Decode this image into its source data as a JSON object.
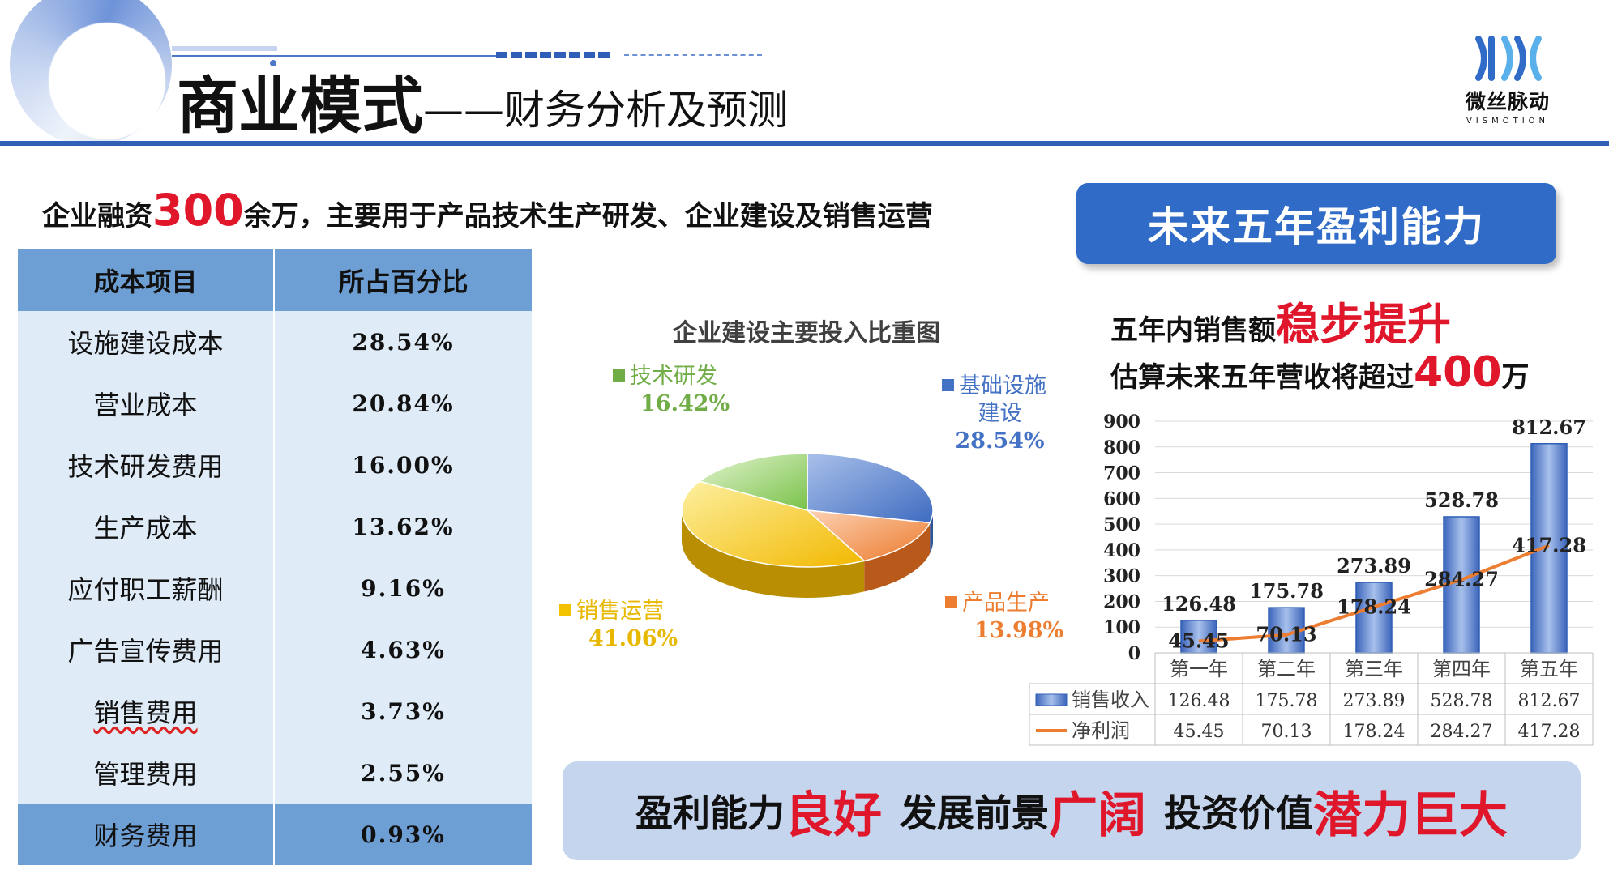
{
  "header": {
    "title_main": "商业模式",
    "title_sub": "——财务分析及预测"
  },
  "logo": {
    "name_cn": "微丝脉动",
    "name_en": "VISMOTION"
  },
  "funding": {
    "prefix": "企业融资",
    "amount": "300",
    "suffix": "余万，主要用于产品技术生产研发、企业建设及销售运营"
  },
  "cost_table": {
    "headers": [
      "成本项目",
      "所占百分比"
    ],
    "rows": [
      {
        "item": "设施建设成本",
        "pct": "28.54%"
      },
      {
        "item": "营业成本",
        "pct": "20.84%"
      },
      {
        "item": "技术研发费用",
        "pct": "16.00%"
      },
      {
        "item": "生产成本",
        "pct": "13.62%"
      },
      {
        "item": "应付职工薪酬",
        "pct": "9.16%"
      },
      {
        "item": "广告宣传费用",
        "pct": "4.63%"
      },
      {
        "item": "销售费用",
        "pct": "3.73%"
      },
      {
        "item": "管理费用",
        "pct": "2.55%"
      },
      {
        "item": "财务费用",
        "pct": "0.93%"
      }
    ]
  },
  "right": {
    "banner": "未来五年盈利能力",
    "line1_prefix": "五年内销售额",
    "line1_emph": "稳步提升",
    "line2_prefix": "估算未来五年营收将超过",
    "line2_amount": "400",
    "line2_suffix": "万"
  },
  "bottom": {
    "p1": "盈利能力",
    "e1": "良好",
    "p2": "发展前景",
    "e2": "广阔",
    "p3": "投资价值",
    "e3": "潜力巨大"
  },
  "colors": {
    "accent": "#2f5fb6",
    "emphasis": "#e0162b",
    "table_header": "#6e9fd4",
    "table_row": "#dfebf7",
    "bar": "#4a78c9",
    "line": "#ed7d31"
  },
  "chart_data": [
    {
      "type": "pie",
      "title": "企业建设主要投入比重图",
      "slices": [
        {
          "name": "基础设施建设",
          "name_lines": [
            "基础设施",
            "建设"
          ],
          "value": 28.54,
          "label": "28.54%",
          "color": "#4472c4"
        },
        {
          "name": "产品生产",
          "value": 13.98,
          "label": "13.98%",
          "color": "#ed7d31"
        },
        {
          "name": "销售运营",
          "value": 41.06,
          "label": "41.06%",
          "color": "#f2c200"
        },
        {
          "name": "技术研发",
          "value": 16.42,
          "label": "16.42%",
          "color": "#70ad47"
        }
      ]
    },
    {
      "type": "bar",
      "title": "",
      "categories": [
        "第一年",
        "第二年",
        "第三年",
        "第四年",
        "第五年"
      ],
      "series": [
        {
          "name": "销售收入",
          "kind": "bar",
          "values": [
            126.48,
            175.78,
            273.89,
            528.78,
            812.67
          ],
          "labels": [
            "126.48",
            "175.78",
            "273.89",
            "528.78",
            "812.67"
          ]
        },
        {
          "name": "净利润",
          "kind": "line",
          "values": [
            45.45,
            70.13,
            178.24,
            284.27,
            417.28
          ],
          "labels": [
            "45.45",
            "70.13",
            "178.24",
            "284.27",
            "417.28"
          ]
        }
      ],
      "yticks": [
        "0",
        "100",
        "200",
        "300",
        "400",
        "500",
        "600",
        "700",
        "800",
        "900"
      ],
      "ylim": [
        0,
        900
      ],
      "grid": true,
      "data_table": true,
      "legend": "data-table"
    }
  ]
}
